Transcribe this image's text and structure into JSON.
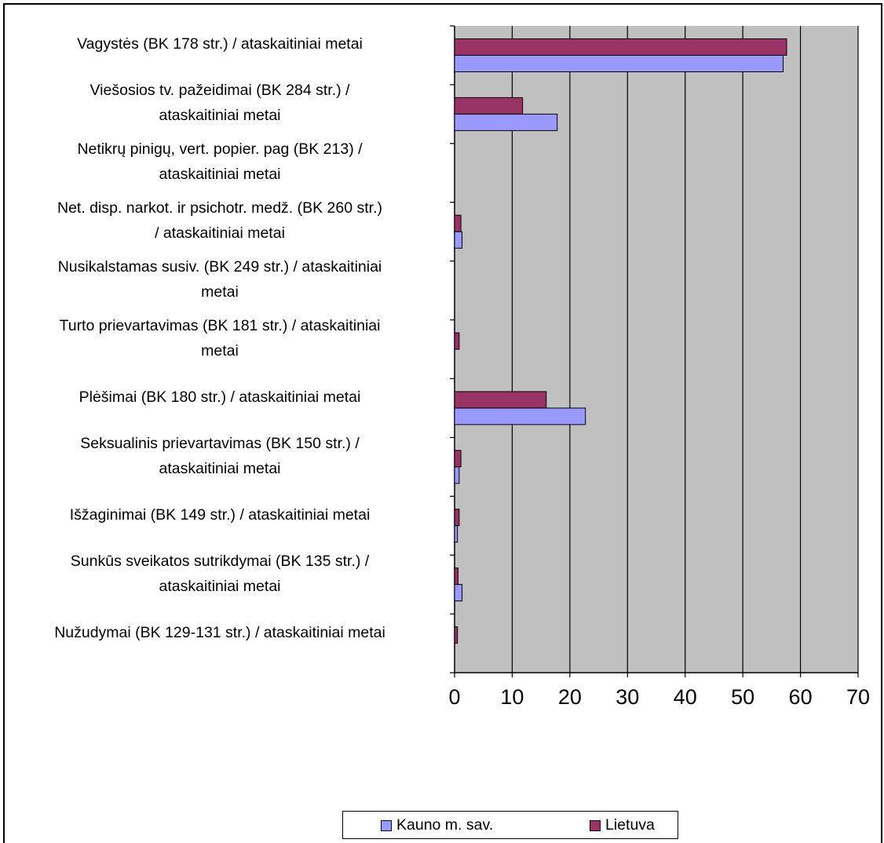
{
  "chart_data": {
    "type": "bar",
    "orientation": "horizontal",
    "categories": [
      "Vagystės (BK 178 str.) / ataskaitiniai metai",
      "Viešosios tv. pažeidimai (BK 284 str.) / ataskaitiniai metai",
      "Netikrų pinigų, vert. popier. pag (BK 213) / ataskaitiniai metai",
      "Net. disp. narkot. ir psichotr. medž. (BK 260 str.) / ataskaitiniai metai",
      "Nusikalstamas susiv. (BK 249 str.) / ataskaitiniai metai",
      "Turto prievartavimas (BK 181 str.) / ataskaitiniai metai",
      "Plėšimai (BK 180 str.) / ataskaitiniai metai",
      "Seksualinis prievartavimas (BK 150 str.) / ataskaitiniai metai",
      "Išžaginimai (BK 149 str.) / ataskaitiniai metai",
      "Sunkūs sveikatos sutrikdymai (BK 135 str.) / ataskaitiniai metai",
      "Nužudymai (BK 129-131 str.) / ataskaitiniai metai"
    ],
    "category_lines": [
      [
        "Vagystės (BK 178 str.) / ataskaitiniai metai"
      ],
      [
        "Viešosios tv. pažeidimai (BK 284 str.) /",
        "ataskaitiniai metai"
      ],
      [
        "Netikrų pinigų, vert. popier. pag (BK 213) /",
        "ataskaitiniai metai"
      ],
      [
        "Net. disp. narkot. ir psichotr. medž. (BK 260 str.)",
        "/ ataskaitiniai metai"
      ],
      [
        "Nusikalstamas susiv. (BK 249 str.) / ataskaitiniai",
        "metai"
      ],
      [
        "Turto prievartavimas (BK 181 str.) / ataskaitiniai",
        "metai"
      ],
      [
        "Plėšimai (BK 180 str.) / ataskaitiniai metai"
      ],
      [
        "Seksualinis prievartavimas (BK 150 str.) /",
        "ataskaitiniai metai"
      ],
      [
        "Išžaginimai (BK 149 str.) / ataskaitiniai metai"
      ],
      [
        "Sunkūs sveikatos sutrikdymai (BK 135 str.) /",
        "ataskaitiniai metai"
      ],
      [
        "Nužudymai (BK 129-131 str.) / ataskaitiniai metai"
      ]
    ],
    "series": [
      {
        "name": "Kauno m. sav.",
        "color": "#9999ff",
        "values": [
          57,
          17.8,
          0,
          1.3,
          0,
          0,
          22.7,
          0.8,
          0.5,
          1.3,
          0
        ]
      },
      {
        "name": "Lietuva",
        "color": "#993366",
        "values": [
          57.6,
          11.8,
          0,
          1.1,
          0,
          0.8,
          15.9,
          1.1,
          0.8,
          0.6,
          0.5
        ]
      }
    ],
    "xlim": [
      0,
      70
    ],
    "xticks": [
      "0",
      "10",
      "20",
      "30",
      "40",
      "50",
      "60",
      "70"
    ],
    "grid": "vertical",
    "plot_background": "#c0c0c0",
    "legend_position": "bottom",
    "title": "",
    "xlabel": "",
    "ylabel": ""
  }
}
